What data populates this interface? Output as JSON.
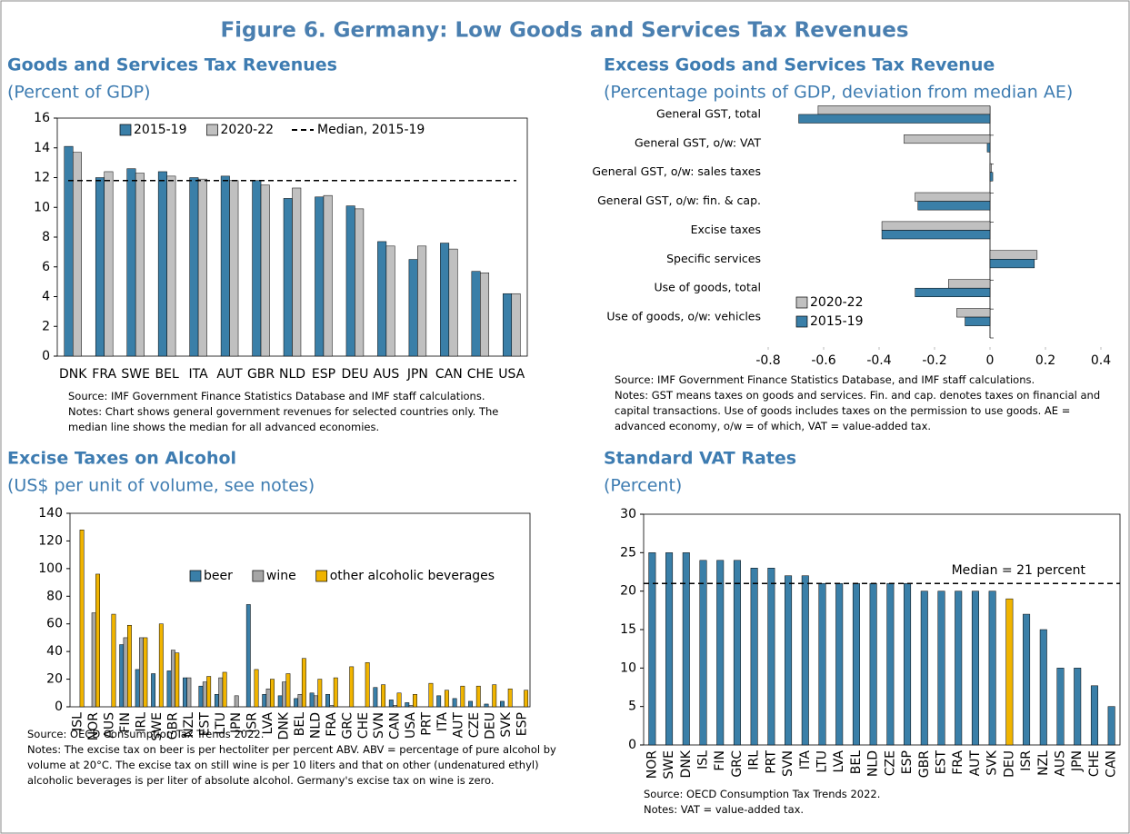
{
  "title": "Figure 6. Germany: Low Goods and Services Tax Revenues",
  "chart_data": [
    {
      "type": "bar",
      "title": "Goods and Services Tax Revenues",
      "subtitle": "(Percent of GDP)",
      "categories": [
        "DNK",
        "FRA",
        "SWE",
        "BEL",
        "ITA",
        "AUT",
        "GBR",
        "NLD",
        "ESP",
        "DEU",
        "AUS",
        "JPN",
        "CAN",
        "CHE",
        "USA"
      ],
      "series": [
        {
          "name": "2015-19",
          "color": "#3a7fa8",
          "values": [
            14.1,
            12.0,
            12.6,
            12.4,
            12.0,
            12.1,
            11.8,
            10.6,
            10.7,
            10.1,
            7.7,
            6.5,
            7.6,
            5.7,
            4.2
          ]
        },
        {
          "name": "2020-22",
          "color": "#c0c0c0",
          "values": [
            13.7,
            12.4,
            12.3,
            12.1,
            11.9,
            11.8,
            11.5,
            11.3,
            10.8,
            9.9,
            7.4,
            7.4,
            7.2,
            5.6,
            4.2
          ]
        }
      ],
      "median": {
        "name": "Median, 2015-19",
        "value": 11.8
      },
      "ylim": [
        0,
        16
      ],
      "yticks": [
        0,
        2,
        4,
        6,
        8,
        10,
        12,
        14,
        16
      ],
      "legend": "top",
      "source": "Source: IMF Government Finance Statistics Database and IMF staff calculations.",
      "notes": "Notes: Chart shows general government revenues for selected countries only. The median line shows the median for all advanced economies."
    },
    {
      "type": "barh",
      "title": "Excess Goods and Services Tax Revenue",
      "subtitle": "(Percentage points of GDP, deviation from median AE)",
      "categories": [
        "General GST, total",
        "General GST, o/w: VAT",
        "General GST, o/w: sales taxes",
        "General GST, o/w: fin. & cap.",
        "Excise taxes",
        "Specific services",
        "Use of goods, total",
        "Use of goods, o/w: vehicles"
      ],
      "series": [
        {
          "name": "2020-22",
          "color": "#c0c0c0",
          "values": [
            -0.62,
            -0.31,
            0.005,
            -0.27,
            -0.39,
            0.17,
            -0.15,
            -0.12
          ]
        },
        {
          "name": "2015-19",
          "color": "#3a7fa8",
          "values": [
            -0.69,
            -0.01,
            0.01,
            -0.26,
            -0.39,
            0.16,
            -0.27,
            -0.09
          ]
        }
      ],
      "xlim": [
        -0.8,
        0.4
      ],
      "xticks": [
        -0.8,
        -0.6,
        -0.4,
        -0.2,
        0,
        0.2,
        0.4
      ],
      "legend": "lower left",
      "source": "Source: IMF Government Finance Statistics Database, and IMF staff calculations.",
      "notes": "Notes: GST means taxes on goods and services. Fin. and cap. denotes taxes on financial and capital transactions. Use of goods includes taxes on the permission to use goods. AE = advanced economy, o/w = of which, VAT = value-added tax."
    },
    {
      "type": "bar",
      "title": "Excise Taxes on Alcohol",
      "subtitle": "(US$ per unit of volume, see notes)",
      "categories": [
        "ISL",
        "NOR",
        "AUS",
        "FIN",
        "IRL",
        "SWE",
        "GBR",
        "NZL",
        "EST",
        "LTU",
        "JPN",
        "ISR",
        "LVA",
        "DNK",
        "BEL",
        "NLD",
        "FRA",
        "GRC",
        "CHE",
        "SVN",
        "CAN",
        "USA",
        "PRT",
        "ITA",
        "AUT",
        "CZE",
        "DEU",
        "SVK",
        "ESP"
      ],
      "series": [
        {
          "name": "beer",
          "color": "#3a7fa8",
          "values": [
            0,
            0,
            0,
            45,
            27,
            24,
            26,
            21,
            15,
            9,
            0,
            74,
            9,
            8,
            6,
            10,
            9,
            0,
            0,
            14,
            5,
            3,
            0,
            8,
            6,
            4,
            2,
            4,
            0
          ]
        },
        {
          "name": "wine",
          "color": "#a6a6a6",
          "values": [
            0,
            68,
            0,
            50,
            50,
            0,
            41,
            21,
            18,
            21,
            8,
            0,
            13,
            18,
            9,
            8,
            1,
            0,
            0,
            0,
            1,
            1,
            0,
            0,
            0,
            0,
            0,
            0,
            0
          ]
        },
        {
          "name": "other alcoholic beverages",
          "color": "#f0b400",
          "values": [
            128,
            96,
            67,
            59,
            50,
            60,
            39,
            0,
            22,
            25,
            0,
            27,
            20,
            24,
            35,
            20,
            21,
            29,
            32,
            16,
            10,
            9,
            17,
            12,
            15,
            15,
            16,
            13,
            12
          ]
        }
      ],
      "ylim": [
        0,
        140
      ],
      "yticks": [
        0,
        20,
        40,
        60,
        80,
        100,
        120,
        140
      ],
      "legend": "upper right",
      "source": "Source: OECD Consumption Tax Trends 2022.",
      "notes": "Notes: The excise tax on beer is per hectoliter per percent ABV. ABV = percentage of pure alcohol by volume at 20°C. The excise tax on still wine is per 10 liters and that on other (undenatured ethyl) alcoholic beverages is per liter of absolute alcohol. Germany's excise tax on wine is zero."
    },
    {
      "type": "bar",
      "title": "Standard VAT Rates",
      "subtitle": "(Percent)",
      "categories": [
        "NOR",
        "SWE",
        "DNK",
        "ISL",
        "FIN",
        "GRC",
        "IRL",
        "PRT",
        "SVN",
        "ITA",
        "LTU",
        "LVA",
        "BEL",
        "NLD",
        "CZE",
        "ESP",
        "GBR",
        "EST",
        "FRA",
        "AUT",
        "SVK",
        "DEU",
        "ISR",
        "NZL",
        "AUS",
        "JPN",
        "CHE",
        "CAN"
      ],
      "series": [
        {
          "values": [
            25,
            25,
            25,
            24,
            24,
            24,
            23,
            23,
            22,
            22,
            21,
            21,
            21,
            21,
            21,
            21,
            20,
            20,
            20,
            20,
            20,
            19,
            17,
            15,
            10,
            10,
            7.7,
            5
          ],
          "colors": [
            "#3a7fa8",
            "#3a7fa8",
            "#3a7fa8",
            "#3a7fa8",
            "#3a7fa8",
            "#3a7fa8",
            "#3a7fa8",
            "#3a7fa8",
            "#3a7fa8",
            "#3a7fa8",
            "#3a7fa8",
            "#3a7fa8",
            "#3a7fa8",
            "#3a7fa8",
            "#3a7fa8",
            "#3a7fa8",
            "#3a7fa8",
            "#3a7fa8",
            "#3a7fa8",
            "#3a7fa8",
            "#3a7fa8",
            "#f0b400",
            "#3a7fa8",
            "#3a7fa8",
            "#3a7fa8",
            "#3a7fa8",
            "#3a7fa8",
            "#3a7fa8"
          ]
        }
      ],
      "median": {
        "label": "Median = 21 percent",
        "value": 21
      },
      "ylim": [
        0,
        30
      ],
      "yticks": [
        0,
        5,
        10,
        15,
        20,
        25,
        30
      ],
      "source": "Source: OECD Consumption Tax Trends 2022.",
      "notes": "Notes: VAT = value-added tax."
    }
  ]
}
